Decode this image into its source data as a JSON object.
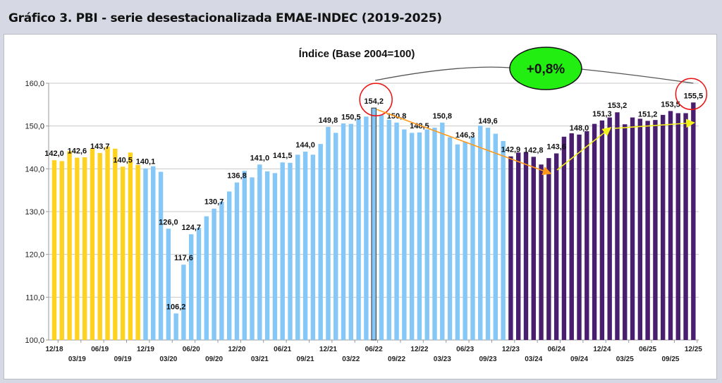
{
  "header": {
    "title": "Gráfico 3. PBI - serie desestacionalizada EMAE-INDEC (2019-2025)"
  },
  "chart_data": {
    "type": "bar",
    "title": "Índice (Base 2004=100)",
    "xlabel": "",
    "ylabel": "",
    "ylim": [
      100,
      160
    ],
    "yticks": [
      "100,0",
      "110,0",
      "120,0",
      "130,0",
      "140,0",
      "150,0",
      "160,0"
    ],
    "grid": true,
    "legend": "none",
    "colors": {
      "2019": "#ffd21f",
      "2020-2023": "#85c8f8",
      "2024-2025": "#4a1e6e"
    },
    "categories": [
      "12/18",
      "01/19",
      "02/19",
      "03/19",
      "04/19",
      "05/19",
      "06/19",
      "07/19",
      "08/19",
      "09/19",
      "10/19",
      "11/19",
      "12/19",
      "01/20",
      "02/20",
      "03/20",
      "04/20",
      "05/20",
      "06/20",
      "07/20",
      "08/20",
      "09/20",
      "10/20",
      "11/20",
      "12/20",
      "01/21",
      "02/21",
      "03/21",
      "04/21",
      "05/21",
      "06/21",
      "07/21",
      "08/21",
      "09/21",
      "10/21",
      "11/21",
      "12/21",
      "01/22",
      "02/22",
      "03/22",
      "04/22",
      "05/22",
      "06/22",
      "07/22",
      "08/22",
      "09/22",
      "10/22",
      "11/22",
      "12/22",
      "01/23",
      "02/23",
      "03/23",
      "04/23",
      "05/23",
      "06/23",
      "07/23",
      "08/23",
      "09/23",
      "10/23",
      "11/23",
      "12/23",
      "01/24",
      "02/24",
      "03/24",
      "04/24",
      "05/24",
      "06/24",
      "07/24",
      "08/24",
      "09/24",
      "10/24",
      "11/24",
      "12/24",
      "01/25",
      "02/25",
      "03/25",
      "04/25",
      "05/25",
      "06/25",
      "07/25",
      "08/25",
      "09/25",
      "10/25",
      "11/25",
      "12/25"
    ],
    "values": [
      142.0,
      141.8,
      144.1,
      142.6,
      142.7,
      144.7,
      143.7,
      145.2,
      144.7,
      140.5,
      143.8,
      140.9,
      140.1,
      140.6,
      139.3,
      126.0,
      106.2,
      117.6,
      124.7,
      126.2,
      128.9,
      130.7,
      132.3,
      134.7,
      136.8,
      139.5,
      138.0,
      141.0,
      139.4,
      139.0,
      141.5,
      141.4,
      143.3,
      144.0,
      143.3,
      145.8,
      149.8,
      148.4,
      150.6,
      150.5,
      151.6,
      152.2,
      154.2,
      152.6,
      151.5,
      150.8,
      149.2,
      148.4,
      148.5,
      149.2,
      149.6,
      150.8,
      147.4,
      145.7,
      146.3,
      147.4,
      150.1,
      149.6,
      148.2,
      146.5,
      142.9,
      143.8,
      143.9,
      142.8,
      141.0,
      142.5,
      143.6,
      147.5,
      148.3,
      148.0,
      148.8,
      150.5,
      151.3,
      152.0,
      153.2,
      150.4,
      152.0,
      151.7,
      151.2,
      151.4,
      152.6,
      153.5,
      153.0,
      153.0,
      155.5
    ],
    "series_period_colors": [
      "2019",
      "2019",
      "2019",
      "2019",
      "2019",
      "2019",
      "2019",
      "2019",
      "2019",
      "2019",
      "2019",
      "2019"
    ],
    "data_labels": [
      {
        "x": "12/18",
        "text": "142,0"
      },
      {
        "x": "03/19",
        "text": "142,6"
      },
      {
        "x": "06/19",
        "text": "143,7"
      },
      {
        "x": "09/19",
        "text": "140,5"
      },
      {
        "x": "12/19",
        "text": "140,1"
      },
      {
        "x": "03/20",
        "text": "126,0"
      },
      {
        "x": "04/20",
        "text": "106,2"
      },
      {
        "x": "05/20",
        "text": "117,6"
      },
      {
        "x": "06/20",
        "text": "124,7"
      },
      {
        "x": "09/20",
        "text": "130,7"
      },
      {
        "x": "12/20",
        "text": "136,8"
      },
      {
        "x": "03/21",
        "text": "141,0"
      },
      {
        "x": "06/21",
        "text": "141,5"
      },
      {
        "x": "09/21",
        "text": "144,0"
      },
      {
        "x": "12/21",
        "text": "149,8"
      },
      {
        "x": "03/22",
        "text": "150,5"
      },
      {
        "x": "06/22",
        "text": "154,2"
      },
      {
        "x": "09/22",
        "text": "150,8"
      },
      {
        "x": "12/22",
        "text": "148,5"
      },
      {
        "x": "03/23",
        "text": "150,8"
      },
      {
        "x": "06/23",
        "text": "146,3"
      },
      {
        "x": "09/23",
        "text": "149,6"
      },
      {
        "x": "12/23",
        "text": "142,9"
      },
      {
        "x": "03/24",
        "text": "142,8"
      },
      {
        "x": "06/24",
        "text": "143,6"
      },
      {
        "x": "09/24",
        "text": "148,0"
      },
      {
        "x": "12/24",
        "text": "151,3"
      },
      {
        "x": "02/25",
        "text": "153,2"
      },
      {
        "x": "06/25",
        "text": "151,2"
      },
      {
        "x": "09/25",
        "text": "153,5"
      },
      {
        "x": "12/25",
        "text": "155,5"
      }
    ],
    "xtick_labels_row1": [
      "12/18",
      "06/19",
      "12/19",
      "06/20",
      "12/20",
      "06/21",
      "12/21",
      "06/22",
      "12/22",
      "06/23",
      "12/23",
      "06/24",
      "12/24",
      "06/25",
      "12/25"
    ],
    "xtick_labels_row2": [
      "03/19",
      "09/19",
      "03/20",
      "09/20",
      "03/21",
      "09/21",
      "03/22",
      "09/22",
      "03/23",
      "09/23",
      "03/24",
      "09/24",
      "03/25",
      "09/25"
    ],
    "annotations": {
      "change_label": "+0,8%",
      "change_badge_color": "#22ee11",
      "highlight_circle_color": "#ee1111",
      "trend_down_color": "#ff9a1a",
      "trend_up_color": "#f2f21a",
      "highlighted_points": [
        "06/22",
        "12/25"
      ]
    }
  }
}
